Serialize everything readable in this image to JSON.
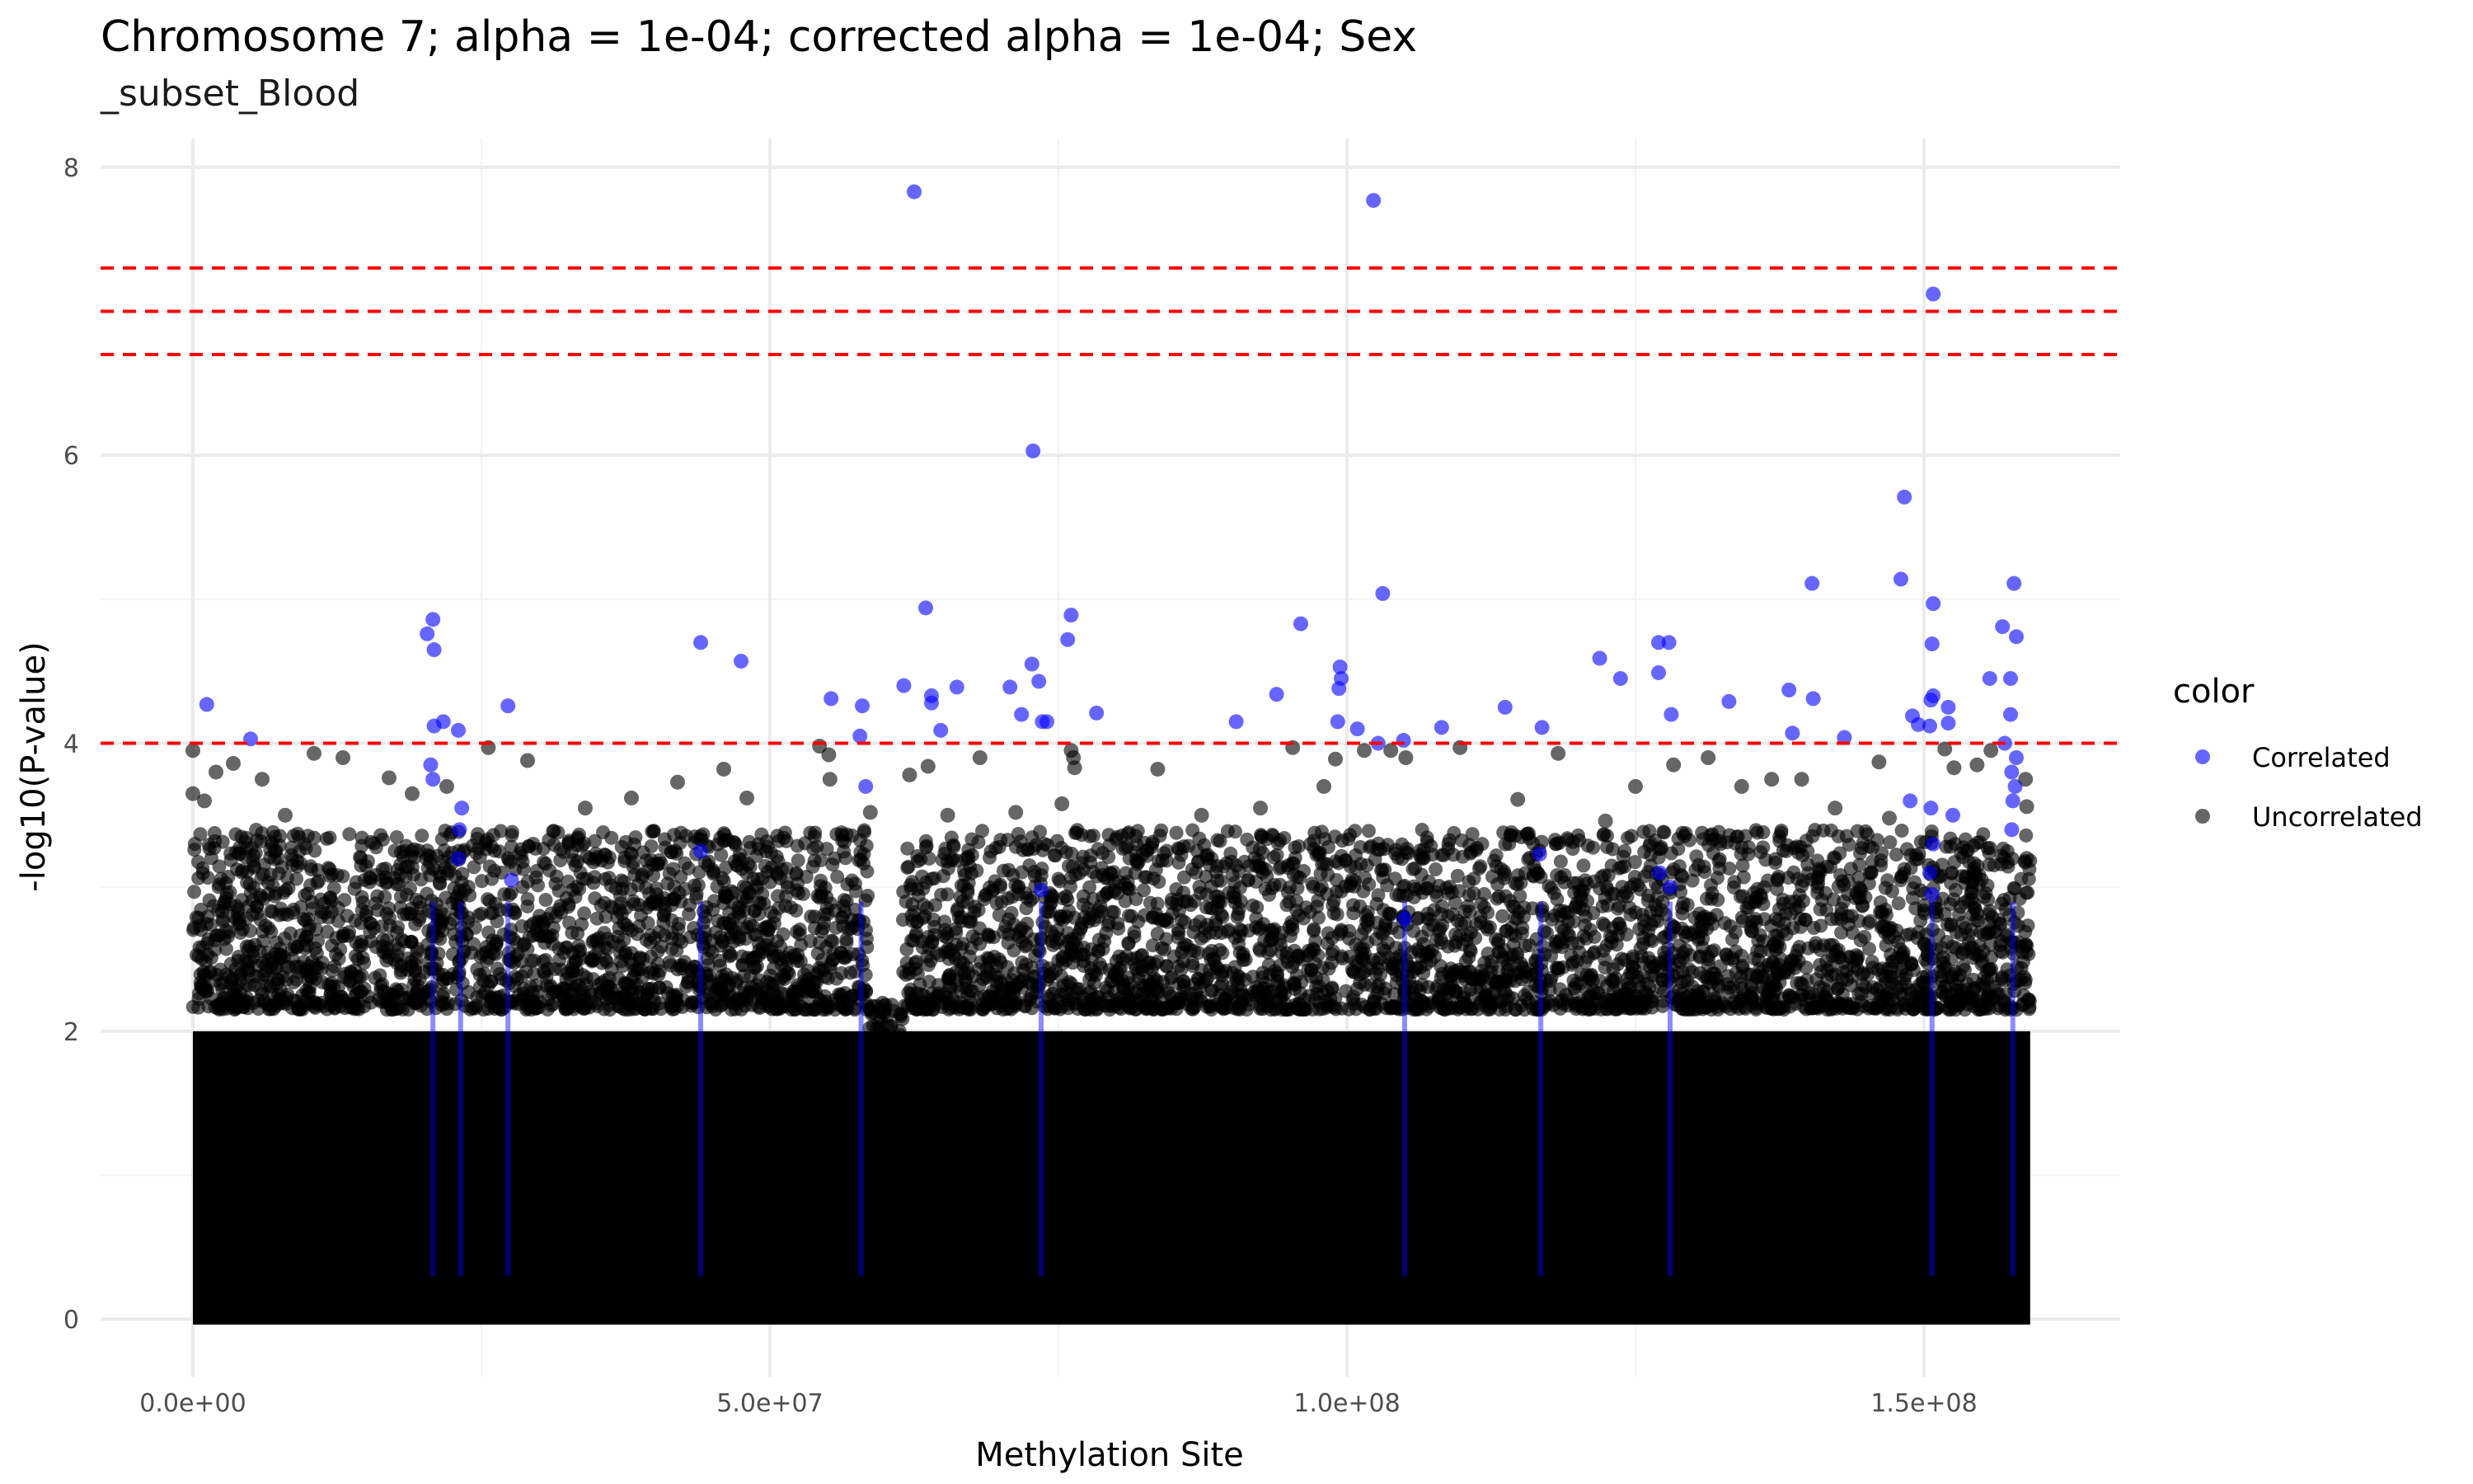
{
  "chart_data": {
    "type": "scatter",
    "title": "Chromosome 7; alpha = 1e-04; corrected alpha = 1e-04; Sex",
    "subtitle": "_subset_Blood",
    "xlabel": "Methylation Site",
    "ylabel": "-log10(P-value)",
    "xlim": [
      -8000000,
      167000000
    ],
    "ylim": [
      -0.4,
      8.2
    ],
    "x_ticks": [
      0,
      50000000,
      100000000,
      150000000
    ],
    "x_tick_labels": [
      "0.0e+00",
      "5.0e+07",
      "1.0e+08",
      "1.5e+08"
    ],
    "y_ticks": [
      0,
      2,
      4,
      6,
      8
    ],
    "y_tick_labels": [
      "0",
      "2",
      "4",
      "6",
      "8"
    ],
    "grid": true,
    "threshold_lines": [
      4,
      6.7,
      7,
      7.3
    ],
    "threshold_color": "#ff0000",
    "legend": {
      "title": "color",
      "placement": "right",
      "entries": [
        {
          "label": "Correlated",
          "color": "#0000ff"
        },
        {
          "label": "Uncorrelated",
          "color": "#000000"
        }
      ]
    },
    "series": [
      {
        "name": "Correlated",
        "color": "#0000ff",
        "points": [
          [
            62500000,
            7.83
          ],
          [
            102300000,
            7.77
          ],
          [
            150800000,
            7.12
          ],
          [
            72800000,
            6.03
          ],
          [
            148300000,
            5.71
          ],
          [
            148000000,
            5.14
          ],
          [
            103100000,
            5.04
          ],
          [
            140300000,
            5.11
          ],
          [
            157800000,
            5.11
          ],
          [
            150800000,
            4.97
          ],
          [
            63500000,
            4.94
          ],
          [
            76100000,
            4.89
          ],
          [
            20800000,
            4.86
          ],
          [
            20300000,
            4.76
          ],
          [
            20900000,
            4.65
          ],
          [
            44000000,
            4.7
          ],
          [
            47500000,
            4.57
          ],
          [
            96000000,
            4.83
          ],
          [
            75800000,
            4.72
          ],
          [
            72700000,
            4.55
          ],
          [
            73300000,
            4.43
          ],
          [
            99400000,
            4.53
          ],
          [
            99500000,
            4.45
          ],
          [
            127000000,
            4.7
          ],
          [
            127900000,
            4.7
          ],
          [
            121900000,
            4.59
          ],
          [
            123700000,
            4.45
          ],
          [
            150700000,
            4.69
          ],
          [
            156800000,
            4.81
          ],
          [
            158000000,
            4.74
          ],
          [
            157500000,
            4.45
          ],
          [
            155700000,
            4.45
          ],
          [
            1200000,
            4.27
          ],
          [
            5000000,
            4.03
          ],
          [
            20900000,
            4.12
          ],
          [
            21700000,
            4.15
          ],
          [
            23000000,
            4.09
          ],
          [
            27300000,
            4.26
          ],
          [
            55300000,
            4.31
          ],
          [
            58000000,
            4.26
          ],
          [
            57800000,
            4.05
          ],
          [
            61600000,
            4.4
          ],
          [
            64000000,
            4.33
          ],
          [
            64000000,
            4.28
          ],
          [
            64800000,
            4.09
          ],
          [
            66200000,
            4.39
          ],
          [
            70800000,
            4.39
          ],
          [
            71800000,
            4.2
          ],
          [
            73600000,
            4.15
          ],
          [
            74000000,
            4.15
          ],
          [
            78300000,
            4.21
          ],
          [
            90400000,
            4.15
          ],
          [
            93900000,
            4.34
          ],
          [
            99300000,
            4.38
          ],
          [
            99200000,
            4.15
          ],
          [
            100900000,
            4.1
          ],
          [
            102700000,
            4.0
          ],
          [
            104900000,
            4.02
          ],
          [
            108200000,
            4.11
          ],
          [
            113700000,
            4.25
          ],
          [
            116900000,
            4.11
          ],
          [
            127000000,
            4.49
          ],
          [
            128100000,
            4.2
          ],
          [
            133100000,
            4.29
          ],
          [
            138300000,
            4.37
          ],
          [
            138600000,
            4.07
          ],
          [
            140400000,
            4.31
          ],
          [
            143100000,
            4.04
          ],
          [
            149000000,
            4.19
          ],
          [
            149500000,
            4.13
          ],
          [
            150600000,
            4.3
          ],
          [
            150800000,
            4.33
          ],
          [
            150500000,
            4.12
          ],
          [
            152100000,
            4.14
          ],
          [
            152100000,
            4.25
          ],
          [
            157000000,
            4.0
          ],
          [
            157500000,
            4.2
          ],
          [
            157600000,
            3.8
          ],
          [
            157700000,
            3.6
          ],
          [
            157600000,
            3.4
          ],
          [
            150600000,
            3.55
          ],
          [
            150800000,
            3.3
          ],
          [
            150500000,
            3.1
          ],
          [
            150700000,
            2.95
          ],
          [
            23300000,
            3.55
          ],
          [
            23100000,
            3.4
          ],
          [
            23000000,
            3.2
          ],
          [
            20600000,
            3.85
          ],
          [
            20800000,
            3.75
          ],
          [
            27600000,
            3.05
          ],
          [
            44000000,
            3.25
          ],
          [
            58300000,
            3.7
          ],
          [
            73500000,
            2.98
          ],
          [
            105000000,
            2.78
          ],
          [
            116700000,
            3.23
          ],
          [
            128000000,
            3.0
          ],
          [
            127100000,
            3.1
          ],
          [
            152500000,
            3.5
          ],
          [
            148800000,
            3.6
          ],
          [
            158000000,
            3.9
          ],
          [
            157900000,
            3.7
          ]
        ]
      },
      {
        "name": "Uncorrelated",
        "color": "#000000",
        "points": [
          [
            0,
            3.95
          ],
          [
            0,
            3.65
          ],
          [
            1000000,
            3.6
          ],
          [
            2000000,
            3.8
          ],
          [
            3500000,
            3.86
          ],
          [
            6000000,
            3.75
          ],
          [
            8000000,
            3.5
          ],
          [
            10500000,
            3.93
          ],
          [
            13000000,
            3.9
          ],
          [
            17000000,
            3.76
          ],
          [
            19000000,
            3.65
          ],
          [
            22000000,
            3.7
          ],
          [
            25600000,
            3.97
          ],
          [
            29000000,
            3.88
          ],
          [
            34000000,
            3.55
          ],
          [
            38000000,
            3.62
          ],
          [
            42000000,
            3.73
          ],
          [
            46000000,
            3.82
          ],
          [
            48000000,
            3.62
          ],
          [
            54300000,
            3.98
          ],
          [
            55100000,
            3.92
          ],
          [
            55200000,
            3.75
          ],
          [
            58700000,
            3.52
          ],
          [
            62100000,
            3.78
          ],
          [
            63700000,
            3.84
          ],
          [
            65400000,
            3.5
          ],
          [
            68200000,
            3.9
          ],
          [
            71300000,
            3.52
          ],
          [
            75300000,
            3.58
          ],
          [
            76100000,
            3.95
          ],
          [
            76300000,
            3.9
          ],
          [
            76400000,
            3.83
          ],
          [
            83600000,
            3.82
          ],
          [
            87400000,
            3.5
          ],
          [
            92500000,
            3.55
          ],
          [
            95300000,
            3.97
          ],
          [
            98000000,
            3.7
          ],
          [
            99000000,
            3.89
          ],
          [
            101500000,
            3.95
          ],
          [
            103800000,
            3.95
          ],
          [
            105100000,
            3.9
          ],
          [
            109800000,
            3.97
          ],
          [
            114800000,
            3.61
          ],
          [
            118300000,
            3.93
          ],
          [
            122400000,
            3.46
          ],
          [
            125000000,
            3.7
          ],
          [
            128300000,
            3.85
          ],
          [
            131300000,
            3.9
          ],
          [
            134200000,
            3.7
          ],
          [
            136800000,
            3.75
          ],
          [
            139400000,
            3.75
          ],
          [
            142300000,
            3.55
          ],
          [
            146100000,
            3.87
          ],
          [
            147000000,
            3.48
          ],
          [
            151800000,
            3.96
          ],
          [
            152600000,
            3.83
          ],
          [
            154600000,
            3.85
          ],
          [
            155800000,
            3.95
          ],
          [
            158800000,
            3.75
          ],
          [
            158900000,
            3.56
          ],
          [
            158900000,
            3.2
          ]
        ],
        "density": "dense band of points between 0 and about 3.3 across the whole x range, thinner between 58e6 and 62e6"
      }
    ]
  }
}
